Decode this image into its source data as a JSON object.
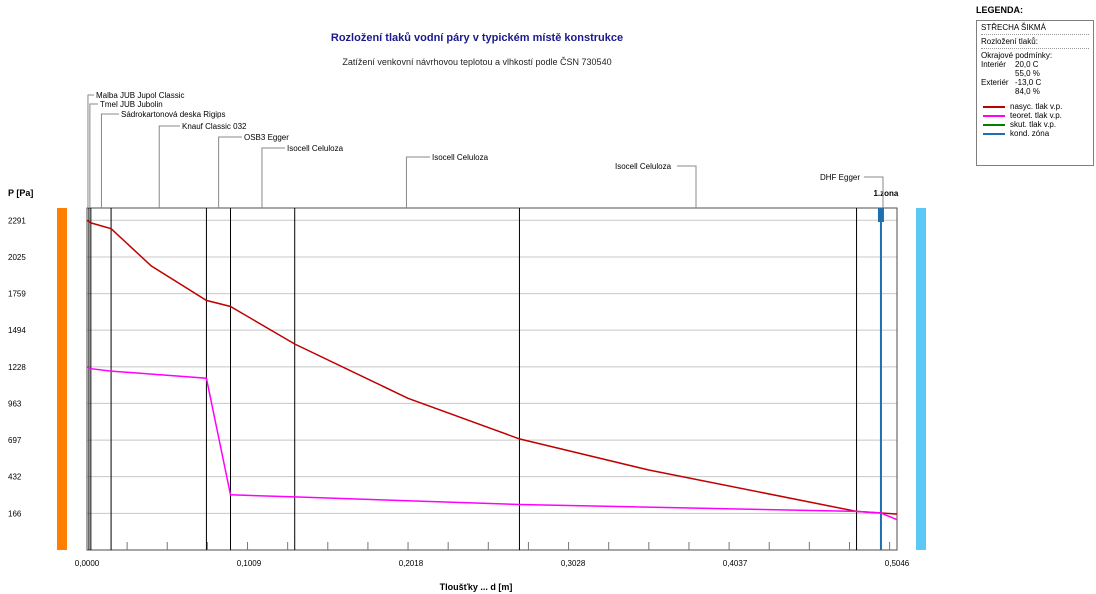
{
  "chart_data": {
    "type": "line",
    "title": "Rozložení tlaků vodní páry v typickém místě konstrukce",
    "subtitle": "Zatížení venkovní návrhovou teplotou a vlhkostí podle ČSN 730540",
    "ylabel": "P [Pa]",
    "xlabel": "Tloušťky ... d [m]",
    "xlim": [
      0,
      0.5046
    ],
    "ylim": [
      -100,
      2380
    ],
    "x_ticks": [
      "0,0000",
      "0,1009",
      "0,2018",
      "0,3028",
      "0,4037",
      "0,5046"
    ],
    "y_ticks": [
      "2291",
      "2025",
      "1759",
      "1494",
      "1228",
      "963",
      "697",
      "432",
      "166"
    ],
    "layer_boundaries": [
      0.0012,
      0.0024,
      0.015,
      0.0744,
      0.0894,
      0.1294,
      0.2694,
      0.4794,
      0.4946
    ],
    "layers": [
      {
        "name": "Malba JUB Jupol Classic",
        "x": 0.0006
      },
      {
        "name": "Tmel JUB Jubolin",
        "x": 0.0018
      },
      {
        "name": "Sádrokartonová deska Rigips",
        "x": 0.009
      },
      {
        "name": "Knauf Classic 032",
        "x": 0.045
      },
      {
        "name": "OSB3 Egger",
        "x": 0.082
      },
      {
        "name": "Isocell Celuloza",
        "x": 0.109
      },
      {
        "name": "Isocell Celuloza",
        "x": 0.199
      },
      {
        "name": "Isocell Celuloza",
        "x": 0.374
      },
      {
        "name": "DHF Egger",
        "x": 0.4996
      }
    ],
    "zone_label": "1.zona",
    "zone_x": 0.4946,
    "series": [
      {
        "name": "nasyc. tlak v.p.",
        "color": "#c00000",
        "x": [
          0,
          0.0012,
          0.0024,
          0.015,
          0.04,
          0.0744,
          0.0894,
          0.1294,
          0.2,
          0.2694,
          0.35,
          0.4794,
          0.4946,
          0.5046
        ],
        "y": [
          2291,
          2282,
          2272,
          2230,
          1960,
          1710,
          1666,
          1394,
          1000,
          706,
          480,
          180,
          168,
          160
        ]
      },
      {
        "name": "teoret. tlak v.p.",
        "color": "#ff00ff",
        "x": [
          0,
          0.0012,
          0.0024,
          0.015,
          0.0744,
          0.0894,
          0.1294,
          0.2694,
          0.4794,
          0.4946,
          0.5046
        ],
        "y": [
          1228,
          1222,
          1215,
          1197,
          1146,
          300,
          285,
          230,
          180,
          168,
          120
        ]
      },
      {
        "name": "skut. tlak v.p.",
        "color": "#008000",
        "x": [],
        "y": []
      },
      {
        "name": "kond. zóna",
        "color": "#1f6fb0",
        "x": [],
        "y": []
      }
    ]
  },
  "legend": {
    "heading": "LEGENDA:",
    "roof_type": "STŘECHA ŠIKMÁ",
    "section": "Rozložení tlaků:",
    "bc_title": "Okrajové podmínky:",
    "interior_label": "Interiér",
    "interior_t": "20,0 C",
    "interior_rh": "55,0 %",
    "exterior_label": "Exteriér",
    "exterior_t": "-13,0 C",
    "exterior_rh": "84,0 %"
  },
  "colors": {
    "interior_bar": "#ff8000",
    "exterior_bar": "#5bc8f5",
    "grid": "#c8c8c8",
    "zone": "#1f6fb0"
  }
}
